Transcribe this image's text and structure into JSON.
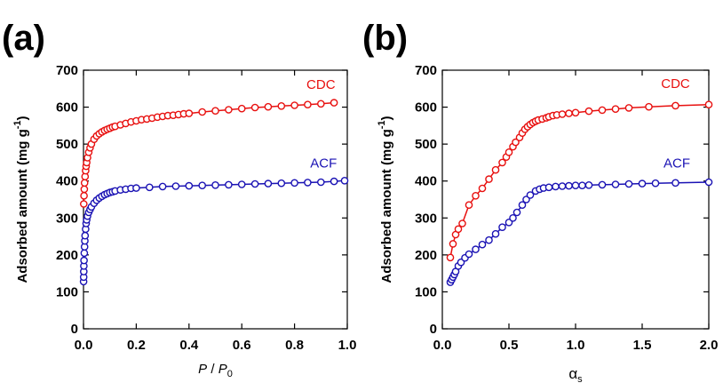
{
  "colors": {
    "CDC": "#e8100f",
    "ACF": "#1a12b4",
    "axis": "#000000"
  },
  "chart_data": [
    {
      "type": "scatter",
      "panel_label": "(a)",
      "xlabel_parts": [
        "P",
        " / ",
        "P",
        "0"
      ],
      "ylabel_parts": [
        "Adsorbed amount (mg g",
        "-1",
        ")"
      ],
      "xlim": [
        0,
        1.0
      ],
      "ylim": [
        0,
        700
      ],
      "xticks": [
        0,
        0.2,
        0.4,
        0.6,
        0.8,
        1.0
      ],
      "xtick_labels": [
        "0.0",
        "0.2",
        "0.4",
        "0.6",
        "0.8",
        "1.0"
      ],
      "yticks": [
        0,
        100,
        200,
        300,
        400,
        500,
        600,
        700
      ],
      "ytick_labels": [
        "0",
        "100",
        "200",
        "300",
        "400",
        "500",
        "600",
        "700"
      ],
      "grid": false,
      "series": [
        {
          "name": "CDC",
          "color": "#e8100f",
          "line": true,
          "x": [
            0.001,
            0.002,
            0.003,
            0.004,
            0.006,
            0.008,
            0.01,
            0.012,
            0.015,
            0.02,
            0.025,
            0.03,
            0.04,
            0.05,
            0.06,
            0.07,
            0.08,
            0.09,
            0.1,
            0.11,
            0.12,
            0.14,
            0.16,
            0.18,
            0.2,
            0.22,
            0.24,
            0.26,
            0.28,
            0.3,
            0.32,
            0.34,
            0.36,
            0.38,
            0.4,
            0.45,
            0.5,
            0.55,
            0.6,
            0.65,
            0.7,
            0.75,
            0.8,
            0.85,
            0.9,
            0.95
          ],
          "y": [
            338,
            360,
            378,
            395,
            412,
            428,
            440,
            450,
            463,
            478,
            490,
            500,
            513,
            522,
            528,
            533,
            537,
            540,
            543,
            546,
            548,
            552,
            556,
            560,
            563,
            566,
            568,
            570,
            573,
            575,
            577,
            578,
            580,
            582,
            583,
            587,
            590,
            593,
            596,
            599,
            601,
            603,
            605,
            607,
            609,
            612
          ]
        },
        {
          "name": "ACF",
          "color": "#1a12b4",
          "line": true,
          "x": [
            0.0005,
            0.0008,
            0.001,
            0.0015,
            0.002,
            0.003,
            0.004,
            0.005,
            0.006,
            0.008,
            0.01,
            0.012,
            0.015,
            0.02,
            0.025,
            0.03,
            0.04,
            0.05,
            0.06,
            0.07,
            0.08,
            0.09,
            0.1,
            0.11,
            0.12,
            0.14,
            0.16,
            0.18,
            0.2,
            0.25,
            0.3,
            0.35,
            0.4,
            0.45,
            0.5,
            0.55,
            0.6,
            0.65,
            0.7,
            0.75,
            0.8,
            0.85,
            0.9,
            0.95,
            0.99
          ],
          "y": [
            128,
            140,
            155,
            170,
            185,
            205,
            222,
            238,
            252,
            270,
            285,
            295,
            305,
            315,
            323,
            330,
            340,
            348,
            354,
            359,
            363,
            366,
            369,
            371,
            373,
            376,
            378,
            380,
            381,
            383,
            385,
            386,
            387,
            388,
            389,
            390,
            391,
            392,
            393,
            394,
            395,
            396,
            397,
            399,
            401
          ]
        }
      ],
      "annotations": [
        {
          "text": "CDC",
          "series": "CDC",
          "x": 0.9,
          "y": 650
        },
        {
          "text": "ACF",
          "series": "ACF",
          "x": 0.91,
          "y": 437
        }
      ]
    },
    {
      "type": "scatter",
      "panel_label": "(b)",
      "xlabel_parts": [
        "α",
        "s"
      ],
      "ylabel_parts": [
        "Adsorbed amount (mg g",
        "-1",
        ")"
      ],
      "xlim": [
        0,
        2.0
      ],
      "ylim": [
        0,
        700
      ],
      "xticks": [
        0,
        0.5,
        1.0,
        1.5,
        2.0
      ],
      "xtick_labels": [
        "0.0",
        "0.5",
        "1.0",
        "1.5",
        "2.0"
      ],
      "yticks": [
        0,
        100,
        200,
        300,
        400,
        500,
        600,
        700
      ],
      "ytick_labels": [
        "0",
        "100",
        "200",
        "300",
        "400",
        "500",
        "600",
        "700"
      ],
      "grid": false,
      "series": [
        {
          "name": "CDC",
          "color": "#e8100f",
          "line": true,
          "x": [
            0.06,
            0.08,
            0.1,
            0.12,
            0.15,
            0.2,
            0.25,
            0.3,
            0.35,
            0.4,
            0.45,
            0.48,
            0.5,
            0.53,
            0.55,
            0.58,
            0.6,
            0.62,
            0.64,
            0.66,
            0.68,
            0.7,
            0.72,
            0.75,
            0.78,
            0.8,
            0.83,
            0.86,
            0.9,
            0.95,
            1.0,
            1.1,
            1.2,
            1.3,
            1.4,
            1.55,
            1.75,
            2.0
          ],
          "y": [
            193,
            230,
            255,
            270,
            285,
            335,
            360,
            380,
            405,
            430,
            450,
            465,
            478,
            493,
            505,
            518,
            530,
            540,
            547,
            553,
            558,
            562,
            565,
            568,
            571,
            574,
            577,
            579,
            581,
            583,
            585,
            589,
            592,
            595,
            598,
            601,
            604,
            607
          ]
        },
        {
          "name": "ACF",
          "color": "#1a12b4",
          "line": true,
          "x": [
            0.06,
            0.07,
            0.08,
            0.09,
            0.1,
            0.12,
            0.14,
            0.17,
            0.2,
            0.25,
            0.3,
            0.35,
            0.4,
            0.45,
            0.5,
            0.53,
            0.56,
            0.6,
            0.63,
            0.66,
            0.7,
            0.73,
            0.76,
            0.8,
            0.85,
            0.9,
            0.95,
            1.0,
            1.05,
            1.1,
            1.2,
            1.3,
            1.4,
            1.5,
            1.6,
            1.75,
            2.0
          ],
          "y": [
            126,
            133,
            140,
            147,
            155,
            170,
            180,
            192,
            202,
            215,
            228,
            240,
            257,
            275,
            288,
            300,
            315,
            335,
            350,
            362,
            373,
            378,
            381,
            383,
            385,
            386,
            387,
            388,
            388,
            389,
            390,
            391,
            392,
            393,
            394,
            395,
            397
          ]
        }
      ],
      "annotations": [
        {
          "text": "CDC",
          "series": "CDC",
          "x": 1.75,
          "y": 652
        },
        {
          "text": "ACF",
          "series": "ACF",
          "x": 1.76,
          "y": 437
        }
      ]
    }
  ]
}
